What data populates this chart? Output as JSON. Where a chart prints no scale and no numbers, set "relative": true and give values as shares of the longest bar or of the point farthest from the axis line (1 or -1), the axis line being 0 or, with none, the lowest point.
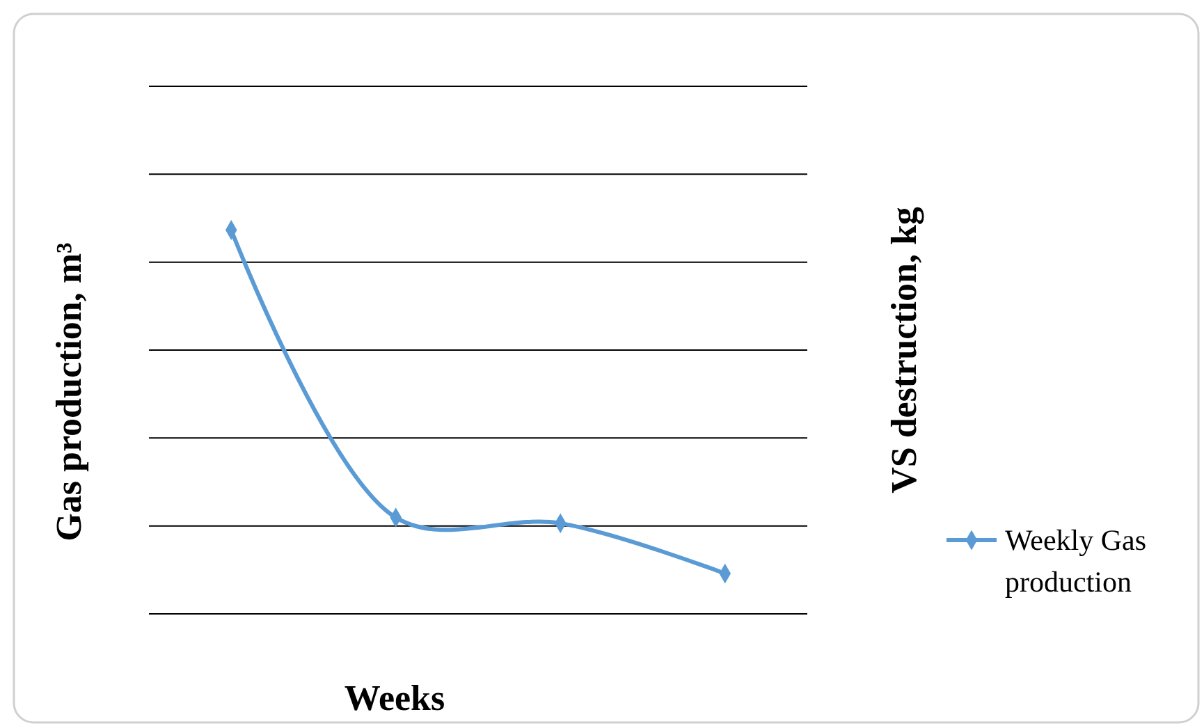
{
  "chart_data": {
    "type": "line",
    "relative": true,
    "xlabel": "Weeks",
    "ylabel": "Gas production, m³",
    "y2label": "VS destruction, kg",
    "categories": [
      null,
      null,
      null,
      null
    ],
    "series": [
      {
        "name": "Weekly Gas production",
        "color": "#5b9bd5",
        "values": [
          1,
          0.251,
          0.236,
          0.105
        ]
      }
    ],
    "grid": "y",
    "legend": "right",
    "marker": "diamond",
    "line_style": "solid"
  }
}
